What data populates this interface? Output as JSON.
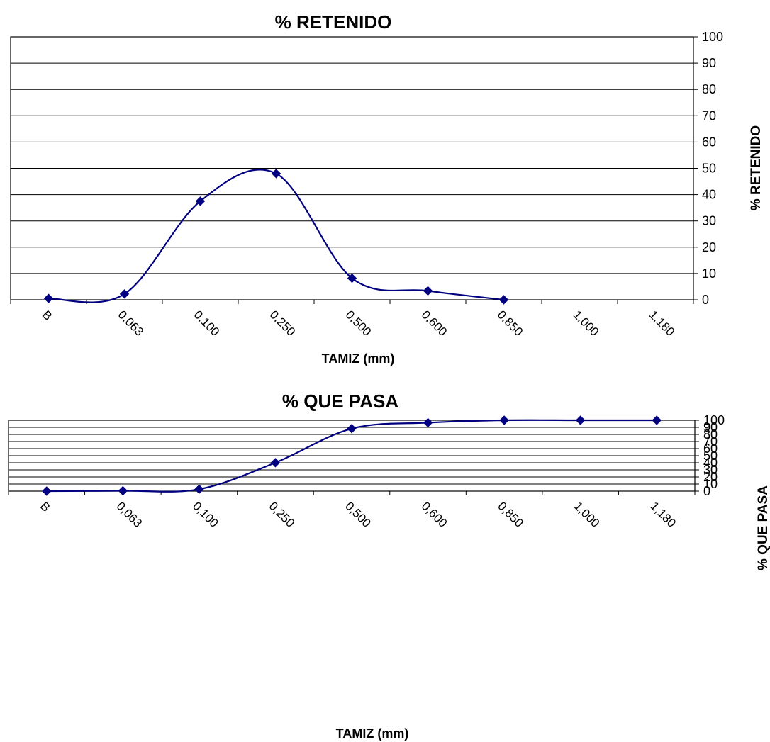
{
  "chart_data": [
    {
      "type": "line",
      "title": "% RETENIDO",
      "xlabel": "TAMIZ (mm)",
      "ylabel": "% RETENIDO",
      "categories": [
        "B",
        "0,063",
        "0,100",
        "0,250",
        "0,500",
        "0,600",
        "0,850",
        "1,000",
        "1,180"
      ],
      "yticks": [
        "0",
        "10",
        "20",
        "30",
        "40",
        "50",
        "60",
        "70",
        "80",
        "90",
        "100"
      ],
      "ylim": [
        0,
        100
      ],
      "y_axis_position": "right",
      "grid": true,
      "smooth": true,
      "marker": "diamond",
      "color": "#000080",
      "series": [
        {
          "values": [
            0.5,
            2.2,
            37.5,
            48,
            8.2,
            3.4,
            0,
            null,
            null
          ]
        }
      ]
    },
    {
      "type": "line",
      "title": "% QUE PASA",
      "xlabel": "TAMIZ  (mm)",
      "ylabel": "% QUE PASA",
      "categories": [
        "B",
        "0,063",
        "0,100",
        "0,250",
        "0,500",
        "0,600",
        "0,850",
        "1,000",
        "1,180"
      ],
      "yticks": [
        "0",
        "10",
        "20",
        "30",
        "40",
        "50",
        "60",
        "70",
        "80",
        "90",
        "100"
      ],
      "ylim": [
        0,
        100
      ],
      "y_axis_position": "right",
      "grid": true,
      "smooth": true,
      "marker": "diamond",
      "color": "#000080",
      "series": [
        {
          "values": [
            0,
            0.5,
            2.7,
            40.2,
            88.2,
            96.6,
            100,
            100,
            100
          ]
        }
      ]
    }
  ]
}
